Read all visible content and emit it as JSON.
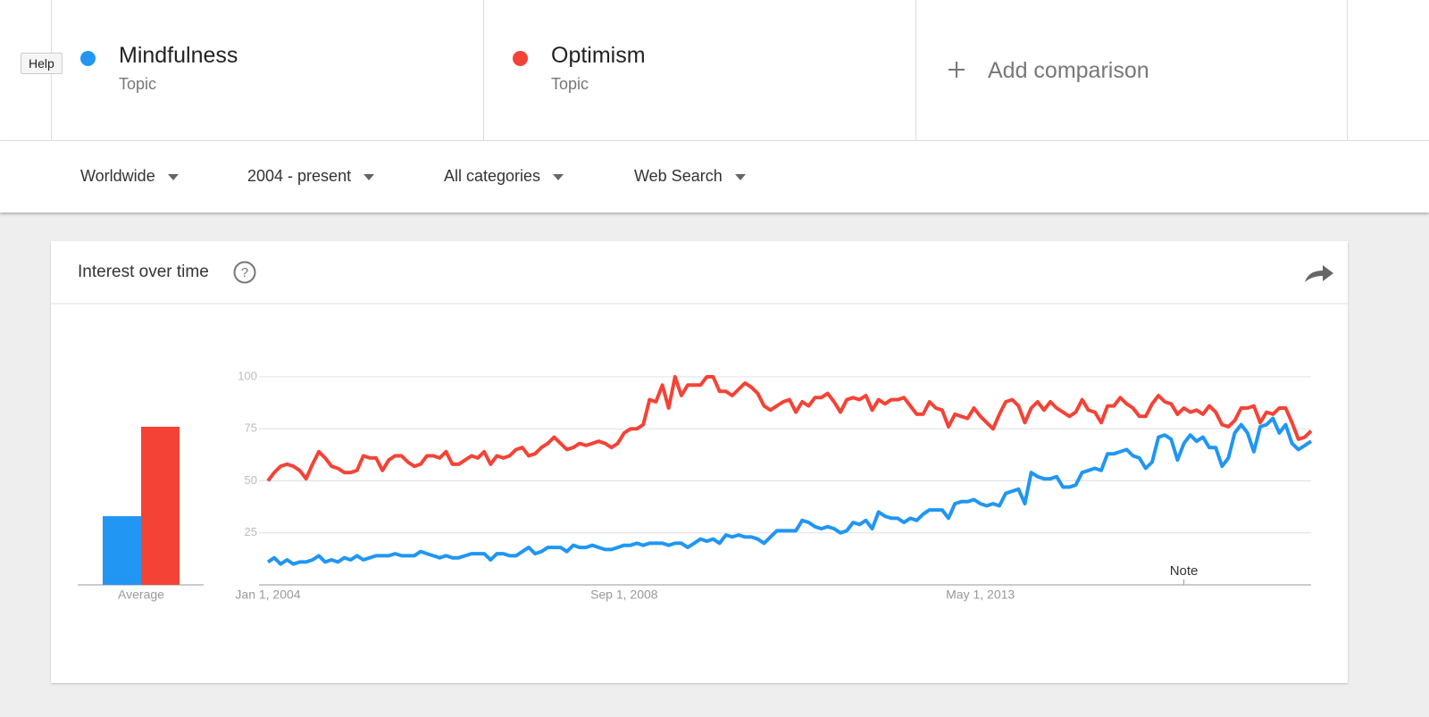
{
  "help": "Help",
  "add_comparison": "Add comparison",
  "filters": [
    "Worldwide",
    "2004 - present",
    "All categories",
    "Web Search"
  ],
  "chart_data": {
    "type": "line",
    "title": "Interest over time",
    "average_label": "Average",
    "x": [
      "2004-01-01",
      "2004-02-01",
      "2004-03-01",
      "2004-04-01",
      "2004-05-01",
      "2004-06-01",
      "2004-07-01",
      "2004-08-01",
      "2004-09-01",
      "2004-10-01",
      "2004-11-01",
      "2004-12-01",
      "2005-01-01",
      "2005-02-01",
      "2005-03-01",
      "2005-04-01",
      "2005-05-01",
      "2005-06-01",
      "2005-07-01",
      "2005-08-01",
      "2005-09-01",
      "2005-10-01",
      "2005-11-01",
      "2005-12-01",
      "2006-01-01",
      "2006-02-01",
      "2006-03-01",
      "2006-04-01",
      "2006-05-01",
      "2006-06-01",
      "2006-07-01",
      "2006-08-01",
      "2006-09-01",
      "2006-10-01",
      "2006-11-01",
      "2006-12-01",
      "2007-01-01",
      "2007-02-01",
      "2007-03-01",
      "2007-04-01",
      "2007-05-01",
      "2007-06-01",
      "2007-07-01",
      "2007-08-01",
      "2007-09-01",
      "2007-10-01",
      "2007-11-01",
      "2007-12-01",
      "2008-01-01",
      "2008-02-01",
      "2008-03-01",
      "2008-04-01",
      "2008-05-01",
      "2008-06-01",
      "2008-07-01",
      "2008-08-01",
      "2008-09-01",
      "2008-10-01",
      "2008-11-01",
      "2008-12-01",
      "2009-01-01",
      "2009-02-01",
      "2009-03-01",
      "2009-04-01",
      "2009-05-01",
      "2009-06-01",
      "2009-07-01",
      "2009-08-01",
      "2009-09-01",
      "2009-10-01",
      "2009-11-01",
      "2009-12-01",
      "2010-01-01",
      "2010-02-01",
      "2010-03-01",
      "2010-04-01",
      "2010-05-01",
      "2010-06-01",
      "2010-07-01",
      "2010-08-01",
      "2010-09-01",
      "2010-10-01",
      "2010-11-01",
      "2010-12-01",
      "2011-01-01",
      "2011-02-01",
      "2011-03-01",
      "2011-04-01",
      "2011-05-01",
      "2011-06-01",
      "2011-07-01",
      "2011-08-01",
      "2011-09-01",
      "2011-10-01",
      "2011-11-01",
      "2011-12-01",
      "2012-01-01",
      "2012-02-01",
      "2012-03-01",
      "2012-04-01",
      "2012-05-01",
      "2012-06-01",
      "2012-07-01",
      "2012-08-01",
      "2012-09-01",
      "2012-10-01",
      "2012-11-01",
      "2012-12-01",
      "2013-01-01",
      "2013-02-01",
      "2013-03-01",
      "2013-04-01",
      "2013-05-01",
      "2013-06-01",
      "2013-07-01",
      "2013-08-01",
      "2013-09-01",
      "2013-10-01",
      "2013-11-01",
      "2013-12-01",
      "2014-01-01",
      "2014-02-01",
      "2014-03-01",
      "2014-04-01",
      "2014-05-01",
      "2014-06-01",
      "2014-07-01",
      "2014-08-01",
      "2014-09-01",
      "2014-10-01",
      "2014-11-01",
      "2014-12-01",
      "2015-01-01",
      "2015-02-01",
      "2015-03-01",
      "2015-04-01",
      "2015-05-01",
      "2015-06-01",
      "2015-07-01",
      "2015-08-01",
      "2015-09-01",
      "2015-10-01",
      "2015-11-01",
      "2015-12-01",
      "2016-01-01",
      "2016-02-01",
      "2016-03-01",
      "2016-04-01",
      "2016-05-01",
      "2016-06-01",
      "2016-07-01",
      "2016-08-01",
      "2016-09-01",
      "2016-10-01",
      "2016-11-01",
      "2016-12-01",
      "2017-01-01",
      "2017-02-01",
      "2017-03-01",
      "2017-04-01",
      "2017-05-01",
      "2017-06-01",
      "2017-07-01",
      "2017-08-01",
      "2017-09-01"
    ],
    "series": [
      {
        "name": "Mindfulness",
        "subtitle": "Topic",
        "color": "#2196f3",
        "average": 33,
        "values": [
          11,
          13,
          10,
          12,
          10,
          11,
          11,
          12,
          14,
          11,
          12,
          11,
          13,
          12,
          14,
          12,
          13,
          14,
          14,
          14,
          15,
          14,
          14,
          14,
          16,
          15,
          14,
          13,
          14,
          13,
          13,
          14,
          15,
          15,
          15,
          12,
          15,
          15,
          14,
          14,
          16,
          18,
          15,
          16,
          18,
          18,
          18,
          16,
          19,
          18,
          18,
          19,
          18,
          17,
          17,
          18,
          19,
          19,
          20,
          19,
          20,
          20,
          20,
          19,
          20,
          20,
          18,
          20,
          22,
          21,
          22,
          20,
          24,
          23,
          24,
          23,
          23,
          22,
          20,
          23,
          26,
          26,
          26,
          26,
          31,
          30,
          28,
          27,
          28,
          27,
          25,
          26,
          30,
          29,
          31,
          27,
          35,
          33,
          32,
          32,
          30,
          32,
          31,
          34,
          36,
          36,
          36,
          32,
          39,
          40,
          40,
          41,
          39,
          38,
          39,
          38,
          44,
          45,
          46,
          39,
          54,
          52,
          51,
          51,
          52,
          47,
          47,
          48,
          54,
          55,
          56,
          55,
          63,
          63,
          64,
          65,
          62,
          61,
          56,
          59,
          71,
          72,
          70,
          60,
          68,
          72,
          69,
          71,
          66,
          66,
          57,
          61,
          73,
          77,
          73,
          64,
          76,
          77,
          80,
          73,
          77,
          68,
          65,
          67,
          69
        ]
      },
      {
        "name": "Optimism",
        "subtitle": "Topic",
        "color": "#f44336",
        "average": 76,
        "values": [
          50,
          54,
          57,
          58,
          57,
          55,
          51,
          58,
          64,
          61,
          57,
          56,
          54,
          54,
          55,
          62,
          61,
          61,
          55,
          60,
          62,
          62,
          59,
          57,
          58,
          62,
          62,
          61,
          64,
          58,
          58,
          60,
          62,
          61,
          64,
          58,
          62,
          61,
          62,
          65,
          66,
          62,
          63,
          66,
          68,
          71,
          68,
          65,
          66,
          68,
          67,
          68,
          69,
          68,
          66,
          68,
          73,
          75,
          75,
          77,
          89,
          88,
          96,
          85,
          100,
          91,
          96,
          96,
          96,
          100,
          100,
          93,
          93,
          91,
          94,
          97,
          95,
          92,
          86,
          84,
          86,
          88,
          89,
          83,
          88,
          86,
          90,
          90,
          92,
          88,
          83,
          89,
          90,
          89,
          91,
          84,
          89,
          87,
          89,
          89,
          90,
          86,
          82,
          82,
          88,
          85,
          84,
          76,
          82,
          81,
          80,
          85,
          81,
          78,
          75,
          82,
          88,
          89,
          86,
          78,
          85,
          88,
          84,
          88,
          85,
          83,
          81,
          83,
          89,
          84,
          83,
          78,
          86,
          86,
          90,
          87,
          85,
          81,
          81,
          87,
          91,
          88,
          87,
          82,
          85,
          83,
          84,
          82,
          86,
          83,
          77,
          76,
          79,
          85,
          85,
          86,
          78,
          83,
          82,
          85,
          85,
          78,
          70,
          71,
          74
        ]
      }
    ],
    "xlim": [
      "2004-01-01",
      "2017-09-01"
    ],
    "xticks": [
      {
        "value": "2004-01-01",
        "label": "Jan 1, 2004"
      },
      {
        "value": "2008-09-01",
        "label": "Sep 1, 2008"
      },
      {
        "value": "2013-05-01",
        "label": "May 1, 2013"
      }
    ],
    "ylim": [
      0,
      100
    ],
    "yticks": [
      25,
      50,
      75,
      100
    ],
    "grid": true,
    "annotations": [
      {
        "x": "2016-01-01",
        "text": "Note"
      }
    ]
  }
}
